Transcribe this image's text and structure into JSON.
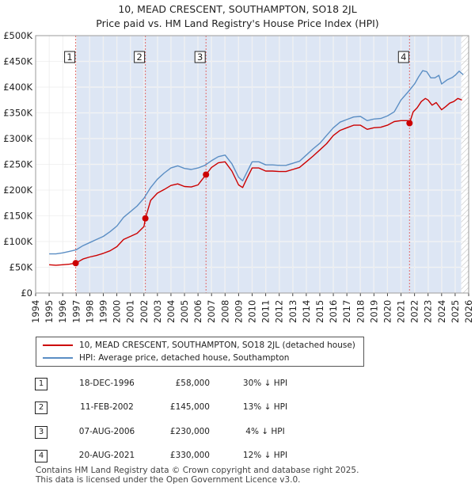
{
  "title_line1": "10, MEAD CRESCENT, SOUTHAMPTON, SO18 2JL",
  "title_line2": "Price paid vs. HM Land Registry's House Price Index (HPI)",
  "chart_data": {
    "type": "line",
    "xlim": [
      1994,
      2026
    ],
    "ylim": [
      0,
      500000
    ],
    "x_ticks": [
      1994,
      1995,
      1996,
      1997,
      1998,
      1999,
      2000,
      2001,
      2002,
      2003,
      2004,
      2005,
      2006,
      2007,
      2008,
      2009,
      2010,
      2011,
      2012,
      2013,
      2014,
      2015,
      2016,
      2017,
      2018,
      2019,
      2020,
      2021,
      2022,
      2023,
      2024,
      2025,
      2026
    ],
    "y_ticks": [
      0,
      50000,
      100000,
      150000,
      200000,
      250000,
      300000,
      350000,
      400000,
      450000,
      500000
    ],
    "y_tick_labels": [
      "£0",
      "£50K",
      "£100K",
      "£150K",
      "£200K",
      "£250K",
      "£300K",
      "£350K",
      "£400K",
      "£450K",
      "£500K"
    ],
    "colors": {
      "price": "#cc0000",
      "hpi": "#5b8ec4",
      "shade": "#dde6f4",
      "marker_line": "#e06a6a"
    },
    "series": [
      {
        "name": "10, MEAD CRESCENT, SOUTHAMPTON, SO18 2JL (detached house)",
        "x": [
          1995.0,
          1995.5,
          1996.0,
          1996.5,
          1996.96,
          1997.5,
          1998.0,
          1998.5,
          1999.0,
          1999.5,
          2000.0,
          2000.5,
          2001.0,
          2001.5,
          2002.0,
          2002.11,
          2002.5,
          2003.0,
          2003.5,
          2004.0,
          2004.5,
          2005.0,
          2005.5,
          2006.0,
          2006.59,
          2007.0,
          2007.5,
          2008.0,
          2008.5,
          2009.0,
          2009.3,
          2009.6,
          2010.0,
          2010.5,
          2011.0,
          2011.5,
          2012.0,
          2012.5,
          2013.0,
          2013.5,
          2014.0,
          2014.5,
          2015.0,
          2015.5,
          2016.0,
          2016.5,
          2017.0,
          2017.5,
          2018.0,
          2018.5,
          2019.0,
          2019.5,
          2020.0,
          2020.5,
          2021.0,
          2021.5,
          2021.63,
          2021.9,
          2022.2,
          2022.5,
          2022.8,
          2023.0,
          2023.3,
          2023.6,
          2024.0,
          2024.3,
          2024.6,
          2024.9,
          2025.2,
          2025.5
        ],
        "y": [
          55000,
          54000,
          55000,
          56000,
          58000,
          66000,
          70000,
          73000,
          77000,
          82000,
          90000,
          104000,
          110000,
          116000,
          129000,
          145000,
          180000,
          194000,
          201000,
          209000,
          212000,
          207000,
          206000,
          210000,
          230000,
          244000,
          253000,
          255000,
          237000,
          210000,
          205000,
          222000,
          243000,
          243000,
          237000,
          237000,
          236000,
          236000,
          240000,
          244000,
          255000,
          266000,
          278000,
          290000,
          306000,
          316000,
          321000,
          326000,
          326000,
          318000,
          321000,
          322000,
          326000,
          333000,
          335000,
          335000,
          330000,
          352000,
          360000,
          372000,
          378000,
          375000,
          365000,
          370000,
          356000,
          362000,
          369000,
          372000,
          378000,
          375000
        ]
      },
      {
        "name": "HPI: Average price, detached house, Southampton",
        "x": [
          1995.0,
          1995.5,
          1996.0,
          1996.5,
          1997.0,
          1997.5,
          1998.0,
          1998.5,
          1999.0,
          1999.5,
          2000.0,
          2000.5,
          2001.0,
          2001.5,
          2002.0,
          2002.5,
          2003.0,
          2003.5,
          2004.0,
          2004.5,
          2005.0,
          2005.5,
          2006.0,
          2006.5,
          2007.0,
          2007.5,
          2008.0,
          2008.5,
          2009.0,
          2009.3,
          2009.6,
          2010.0,
          2010.5,
          2011.0,
          2011.5,
          2012.0,
          2012.5,
          2013.0,
          2013.5,
          2014.0,
          2014.5,
          2015.0,
          2015.5,
          2016.0,
          2016.5,
          2017.0,
          2017.5,
          2018.0,
          2018.5,
          2019.0,
          2019.5,
          2020.0,
          2020.5,
          2021.0,
          2021.5,
          2022.0,
          2022.3,
          2022.6,
          2022.9,
          2023.2,
          2023.5,
          2023.8,
          2024.0,
          2024.4,
          2024.8,
          2025.0,
          2025.3,
          2025.6
        ],
        "y": [
          76000,
          76000,
          78000,
          81000,
          84000,
          92000,
          98000,
          104000,
          110000,
          119000,
          130000,
          147000,
          158000,
          169000,
          184000,
          205000,
          221000,
          233000,
          243000,
          247000,
          242000,
          240000,
          243000,
          248000,
          257000,
          265000,
          268000,
          251000,
          225000,
          218000,
          234000,
          255000,
          255000,
          249000,
          249000,
          248000,
          248000,
          252000,
          256000,
          268000,
          280000,
          291000,
          306000,
          321000,
          332000,
          337000,
          342000,
          343000,
          335000,
          338000,
          339000,
          344000,
          352000,
          375000,
          390000,
          406000,
          420000,
          432000,
          430000,
          418000,
          418000,
          423000,
          406000,
          414000,
          419000,
          423000,
          431000,
          424000
        ]
      }
    ],
    "sales": [
      {
        "num": "1",
        "x": 1996.96,
        "y": 58000
      },
      {
        "num": "2",
        "x": 2002.11,
        "y": 145000
      },
      {
        "num": "3",
        "x": 2006.59,
        "y": 230000
      },
      {
        "num": "4",
        "x": 2021.63,
        "y": 330000
      }
    ],
    "shaded_from": 2025.45
  },
  "legend": {
    "price_label": "10, MEAD CRESCENT, SOUTHAMPTON, SO18 2JL (detached house)",
    "hpi_label": "HPI: Average price, detached house, Southampton"
  },
  "transactions": [
    {
      "num": "1",
      "date": "18-DEC-1996",
      "price": "£58,000",
      "hpi": "30% ↓ HPI"
    },
    {
      "num": "2",
      "date": "11-FEB-2002",
      "price": "£145,000",
      "hpi": "13% ↓ HPI"
    },
    {
      "num": "3",
      "date": "07-AUG-2006",
      "price": "£230,000",
      "hpi": "4% ↓ HPI"
    },
    {
      "num": "4",
      "date": "20-AUG-2021",
      "price": "£330,000",
      "hpi": "12% ↓ HPI"
    }
  ],
  "footer_line1": "Contains HM Land Registry data © Crown copyright and database right 2025.",
  "footer_line2": "This data is licensed under the Open Government Licence v3.0."
}
